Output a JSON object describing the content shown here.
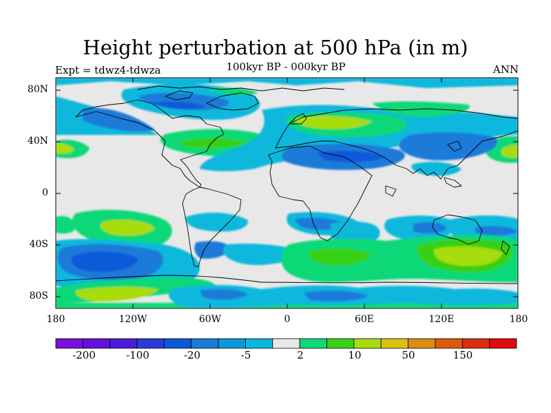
{
  "title": "Height perturbation at 500 hPa (in m)",
  "subtitle": "100kyr BP - 000kyr BP",
  "left_label": "Expt = tdwz4-tdwza",
  "right_label": "ANN",
  "lat_ticks": [
    "80N",
    "40N",
    "0",
    "40S",
    "80S"
  ],
  "lon_ticks": [
    "180",
    "120W",
    "60W",
    "0",
    "60E",
    "120E",
    "180"
  ],
  "colorbar": {
    "colors": [
      "#7b10d8",
      "#6212d8",
      "#4a1cd8",
      "#2a3ad8",
      "#0a5ad8",
      "#1a7ad8",
      "#0a96d8",
      "#0ab8dc",
      "#e8e8e8",
      "#10d878",
      "#38d018",
      "#a8dc10",
      "#dcc010",
      "#dc8c10",
      "#dc5a10",
      "#dc2c10",
      "#dc0c10"
    ],
    "labels": [
      "-200",
      "-100",
      "-20",
      "-5",
      "2",
      "10",
      "50",
      "150"
    ]
  }
}
